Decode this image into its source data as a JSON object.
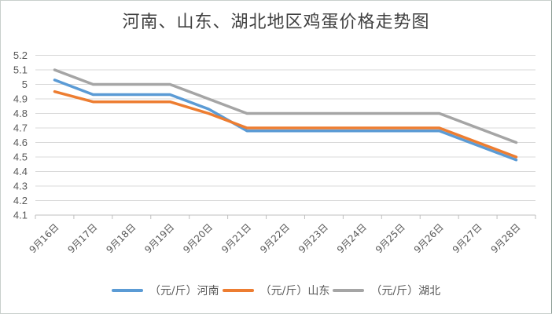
{
  "chart_data": {
    "type": "line",
    "title": "河南、山东、湖北地区鸡蛋价格走势图",
    "xlabel": "",
    "ylabel": "",
    "ylim": [
      4.1,
      5.2
    ],
    "yticks": [
      "5.2",
      "5.1",
      "5",
      "4.9",
      "4.8",
      "4.7",
      "4.6",
      "4.5",
      "4.4",
      "4.3",
      "4.2",
      "4.1"
    ],
    "grid": true,
    "legend_position": "bottom",
    "categories": [
      "9月16日",
      "9月17日",
      "9月18日",
      "9月19日",
      "9月20日",
      "9月21日",
      "9月22日",
      "9月23日",
      "9月24日",
      "9月25日",
      "9月26日",
      "9月27日",
      "9月28日"
    ],
    "series": [
      {
        "name": "（元/斤）河南",
        "color": "#5b9bd5",
        "values": [
          5.03,
          4.93,
          4.93,
          4.93,
          4.83,
          4.68,
          4.68,
          4.68,
          4.68,
          4.68,
          4.68,
          4.58,
          4.48
        ]
      },
      {
        "name": "（元/斤）山东",
        "color": "#ed7d31",
        "values": [
          4.95,
          4.88,
          4.88,
          4.88,
          4.8,
          4.7,
          4.7,
          4.7,
          4.7,
          4.7,
          4.7,
          4.6,
          4.5
        ]
      },
      {
        "name": "（元/斤）湖北",
        "color": "#a5a5a5",
        "values": [
          5.1,
          5.0,
          5.0,
          5.0,
          4.9,
          4.8,
          4.8,
          4.8,
          4.8,
          4.8,
          4.8,
          4.7,
          4.6
        ]
      }
    ]
  },
  "legend": {
    "items": [
      {
        "label": "（元/斤）河南",
        "color": "#5b9bd5"
      },
      {
        "label": "（元/斤）山东",
        "color": "#ed7d31"
      },
      {
        "label": "（元/斤）湖北",
        "color": "#a5a5a5"
      }
    ]
  }
}
